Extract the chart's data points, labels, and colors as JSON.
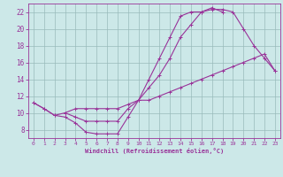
{
  "bg_color": "#cce8e8",
  "line_color": "#993399",
  "grid_color": "#99bbbb",
  "xlabel": "Windchill (Refroidissement éolien,°C)",
  "tick_color": "#993399",
  "xlim": [
    -0.5,
    23.5
  ],
  "ylim": [
    7.0,
    23.0
  ],
  "xticks": [
    0,
    1,
    2,
    3,
    4,
    5,
    6,
    7,
    8,
    9,
    10,
    11,
    12,
    13,
    14,
    15,
    16,
    17,
    18,
    19,
    20,
    21,
    22,
    23
  ],
  "yticks": [
    8,
    10,
    12,
    14,
    16,
    18,
    20,
    22
  ],
  "curve1_x": [
    0,
    1,
    2,
    3,
    4,
    5,
    6,
    7,
    8,
    9,
    10,
    11,
    12,
    13,
    14,
    15,
    16,
    17,
    18,
    19,
    20,
    21,
    22,
    23
  ],
  "curve1_y": [
    11.2,
    10.5,
    9.7,
    9.5,
    8.8,
    7.7,
    7.5,
    7.5,
    7.5,
    9.5,
    11.5,
    13.0,
    14.5,
    16.5,
    19.0,
    20.5,
    22.0,
    22.3,
    22.3,
    22.0,
    20.0,
    18.0,
    16.5,
    15.0
  ],
  "curve2_x": [
    0,
    1,
    2,
    3,
    4,
    5,
    6,
    7,
    8,
    9,
    10,
    11,
    12,
    13,
    14,
    15,
    16,
    17,
    18
  ],
  "curve2_y": [
    11.2,
    10.5,
    9.7,
    10.0,
    10.5,
    10.5,
    10.5,
    10.5,
    10.5,
    11.0,
    11.5,
    14.0,
    16.5,
    19.0,
    21.5,
    22.0,
    22.0,
    22.5,
    22.0
  ],
  "curve3_x": [
    3,
    4,
    5,
    6,
    7,
    8,
    9,
    10,
    11,
    12,
    13,
    14,
    15,
    16,
    17,
    18,
    19,
    20,
    21,
    22,
    23
  ],
  "curve3_y": [
    10.0,
    9.5,
    9.0,
    9.0,
    9.0,
    9.0,
    10.5,
    11.5,
    11.5,
    12.0,
    12.5,
    13.0,
    13.5,
    14.0,
    14.5,
    15.0,
    15.5,
    16.0,
    16.5,
    17.0,
    15.0
  ]
}
